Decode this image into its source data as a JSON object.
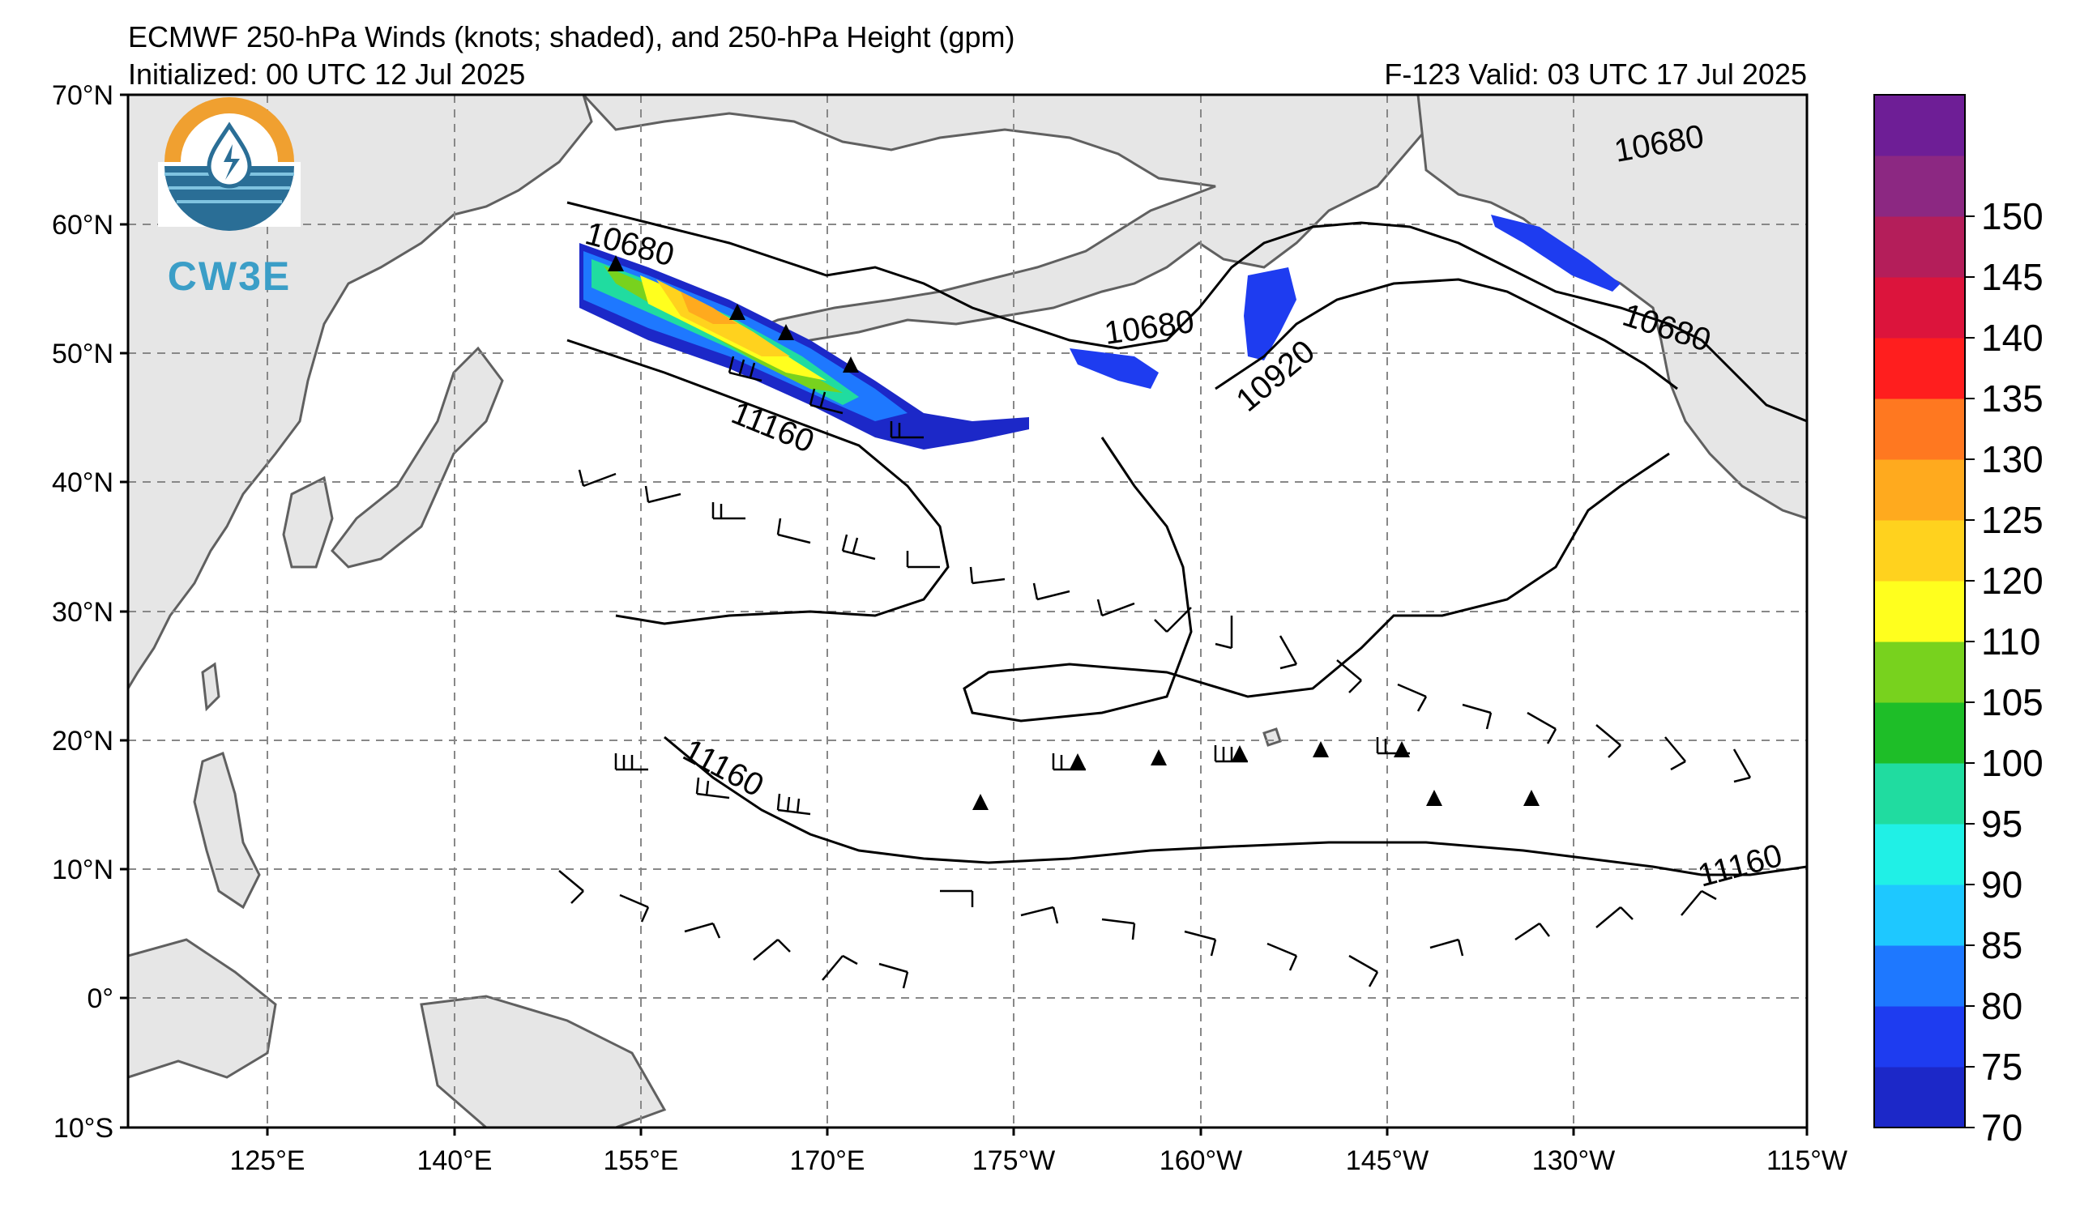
{
  "header": {
    "title": "ECMWF 250-hPa Winds (knots; shaded), and 250-hPa Height (gpm)",
    "initialized": "Initialized: 00 UTC 12 Jul 2025",
    "valid": "F-123  Valid: 03 UTC 17 Jul 2025"
  },
  "logo": {
    "text": "CW3E",
    "icon": "water-drop-lightning-icon"
  },
  "map": {
    "lat_labels": [
      "70°N",
      "60°N",
      "50°N",
      "40°N",
      "30°N",
      "20°N",
      "10°N",
      "0°",
      "10°S"
    ],
    "lon_labels": [
      "125°E",
      "140°E",
      "155°E",
      "170°E",
      "175°W",
      "160°W",
      "145°W",
      "130°W",
      "115°W"
    ],
    "lat_range": [
      -10,
      70
    ],
    "lon_range": [
      110,
      245
    ],
    "grid": true,
    "contour_labels": [
      "10680",
      "10680",
      "10680",
      "10680",
      "10920",
      "11160",
      "11160",
      "11160"
    ]
  },
  "colorbar": {
    "ticks": [
      "70",
      "75",
      "80",
      "85",
      "90",
      "95",
      "100",
      "105",
      "110",
      "120",
      "125",
      "130",
      "135",
      "140",
      "145",
      "150"
    ],
    "colors": [
      "#1c28c8",
      "#1e3cf0",
      "#1e78ff",
      "#1ec8ff",
      "#20f0e6",
      "#20dca0",
      "#1ebe28",
      "#78d21e",
      "#ffff1e",
      "#ffd21e",
      "#ffaa1e",
      "#ff7820",
      "#ff1e1e",
      "#dc143c",
      "#b41e5a",
      "#8c2882",
      "#6e1e96"
    ]
  },
  "colors": {
    "land": "#e6e6e6",
    "coast": "#606060",
    "grid": "#888888"
  }
}
